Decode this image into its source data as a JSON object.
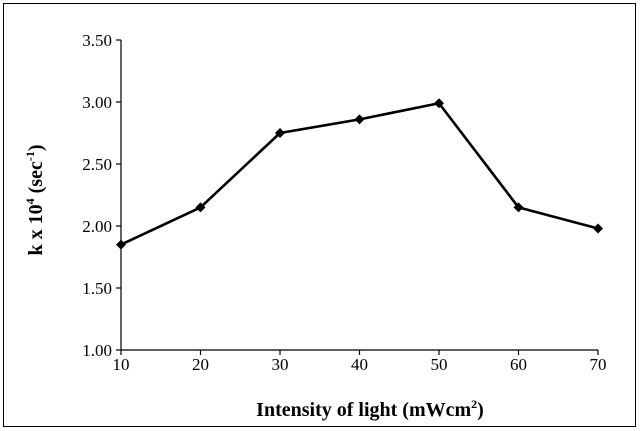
{
  "chart_data": {
    "type": "line",
    "x": [
      10,
      20,
      30,
      40,
      50,
      60,
      70
    ],
    "series": [
      {
        "values": [
          1.85,
          2.15,
          2.75,
          2.86,
          2.99,
          2.15,
          1.98
        ],
        "color": "#000000",
        "marker": "diamond"
      }
    ],
    "xlim": [
      10,
      70
    ],
    "ylim": [
      1.0,
      3.5
    ],
    "x_ticks": [
      "10",
      "20",
      "30",
      "40",
      "50",
      "60",
      "70"
    ],
    "y_ticks": [
      "1.00",
      "1.50",
      "2.00",
      "2.50",
      "3.00",
      "3.50"
    ],
    "xlabel": {
      "main": "Intensity of light (mWcm",
      "sup": "2",
      "tail": ")"
    },
    "ylabel": {
      "p1": "k x 10",
      "sup1": "4",
      "p2": " (sec",
      "sup2": "-1",
      "p3": ")"
    },
    "grid": false,
    "legend": "none"
  }
}
